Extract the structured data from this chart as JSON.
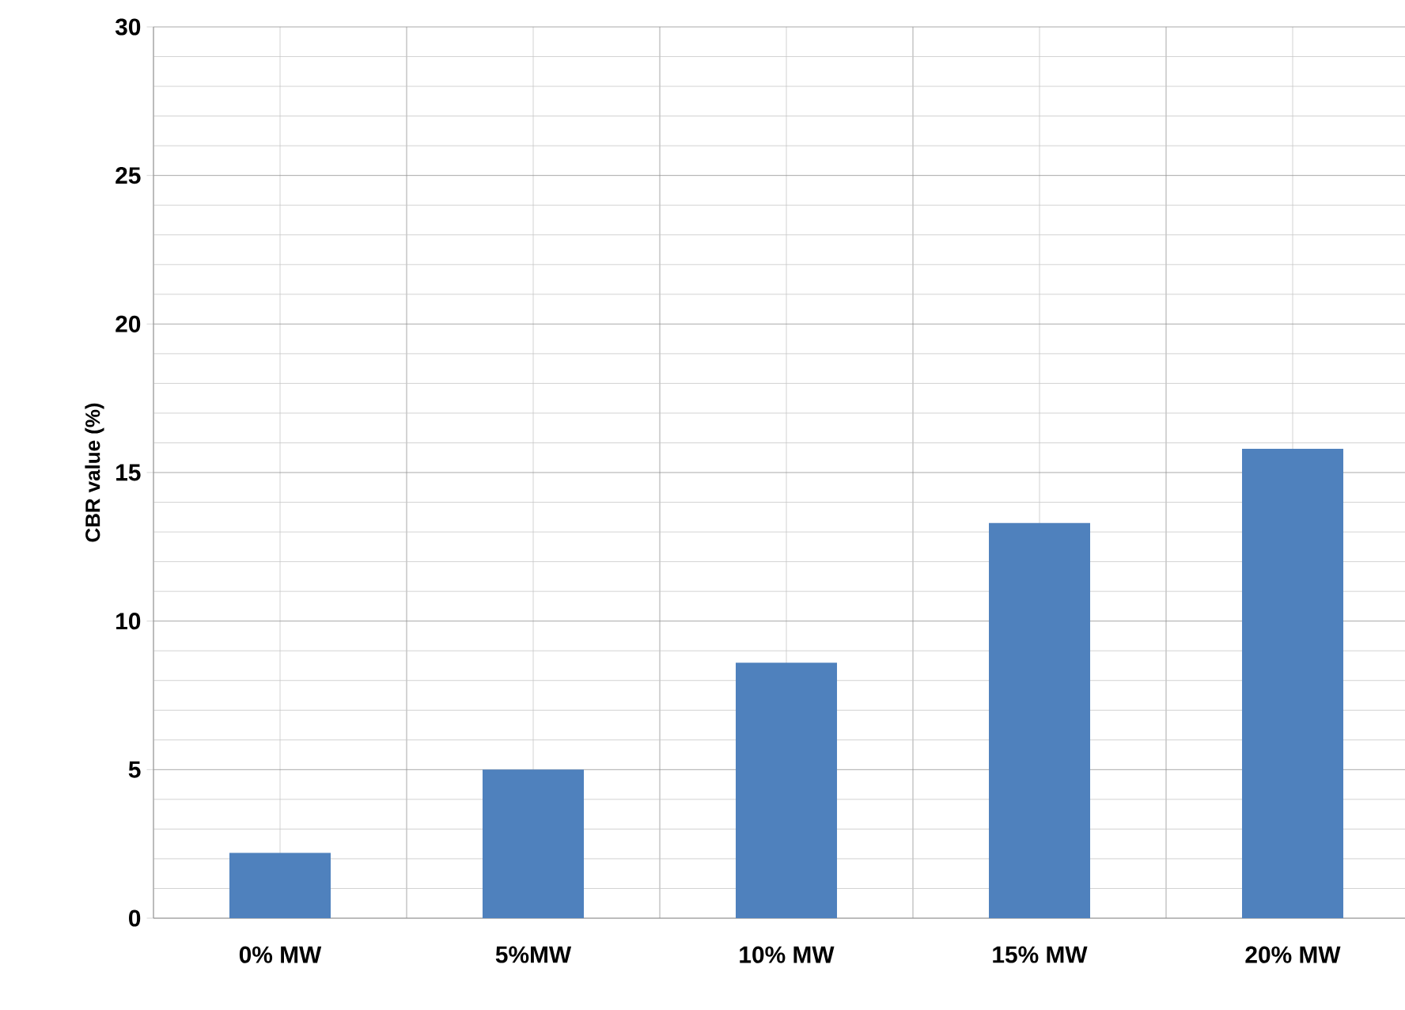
{
  "chart_data": {
    "type": "bar",
    "ylabel": "CBR value  (%)",
    "categories": [
      "0% MW",
      "5%MW",
      "10% MW",
      "15% MW",
      "20% MW"
    ],
    "values": [
      2.2,
      5.0,
      8.6,
      13.3,
      15.8
    ],
    "color": "#4f81bd",
    "ylim": [
      0,
      30
    ],
    "yticks": [
      0,
      5,
      10,
      15,
      20,
      25,
      30
    ],
    "grid": true
  }
}
